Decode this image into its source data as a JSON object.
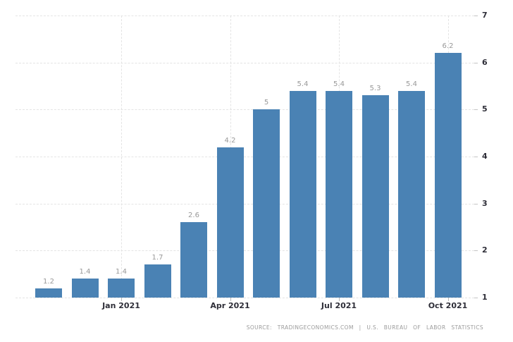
{
  "chart_data": {
    "type": "bar",
    "title": "",
    "xlabel": "",
    "ylabel": "",
    "values": [
      1.2,
      1.4,
      1.4,
      1.7,
      2.6,
      4.2,
      5,
      5.4,
      5.4,
      5.3,
      5.4,
      6.2
    ],
    "bar_labels": [
      "1.2",
      "1.4",
      "1.4",
      "1.7",
      "2.6",
      "4.2",
      "5",
      "5.4",
      "5.4",
      "5.3",
      "5.4",
      "6.2"
    ],
    "x_ticks": [
      {
        "index": 2,
        "label": "Jan 2021"
      },
      {
        "index": 5,
        "label": "Apr 2021"
      },
      {
        "index": 8,
        "label": "Jul 2021"
      },
      {
        "index": 11,
        "label": "Oct 2021"
      }
    ],
    "y_ticks": [
      1,
      2,
      3,
      4,
      5,
      6,
      7
    ],
    "ylim": [
      1,
      7
    ],
    "grid": true,
    "legend_position": "none",
    "bar_color": "#4a82b4",
    "source": "SOURCE: TRADINGECONOMICS.COM | U.S. BUREAU OF LABOR STATISTICS"
  }
}
